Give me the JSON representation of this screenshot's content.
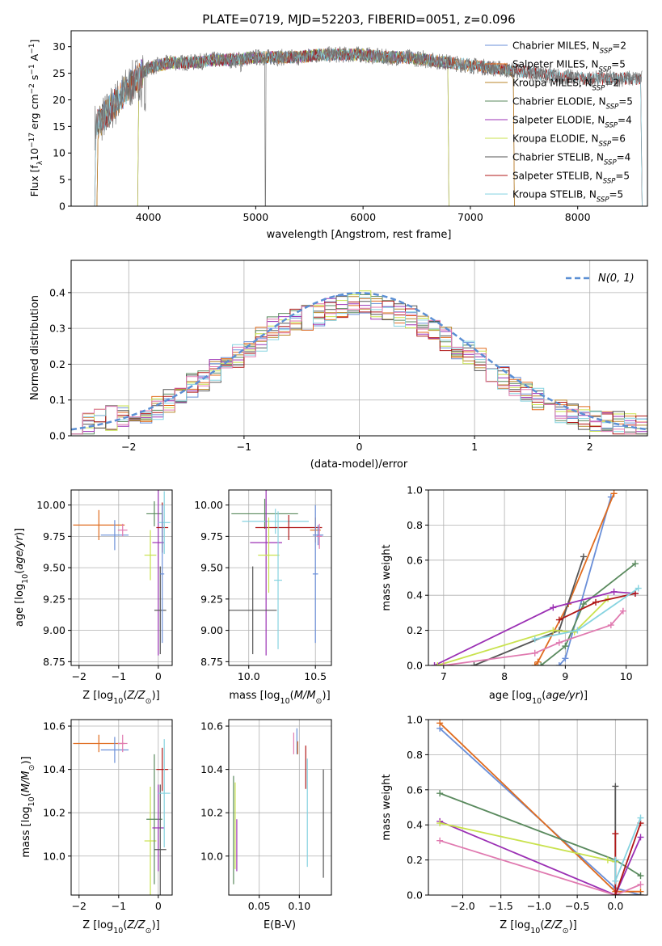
{
  "figure_title": "PLATE=0719, MJD=52203, FIBERID=0051, z=0.096",
  "colors": {
    "chabrier_miles": "#6a8fd8",
    "salpeter_miles": "#e06c1f",
    "kroupa_miles": "#b8862a",
    "chabrier_elodie": "#5a8a5e",
    "salpeter_elodie": "#9b30b4",
    "kroupa_elodie": "#c9e24e",
    "chabrier_stelib": "#555555",
    "salpeter_stelib": "#b01818",
    "kroupa_stelib": "#86d3e0",
    "pink": "#e07ab0",
    "normal_curve": "#5b8fd4"
  },
  "chart_data": [
    {
      "id": "spectrum",
      "type": "line",
      "xlabel": "wavelength [Angstrom, rest frame]",
      "ylabel": "Flux [f_λ 10^-17 erg cm^-2 s^-1 A^-1]",
      "xlim": [
        3280,
        8650
      ],
      "ylim": [
        0,
        33
      ],
      "xticks": [
        4000,
        5000,
        6000,
        7000,
        8000
      ],
      "yticks": [
        0,
        5,
        10,
        15,
        20,
        25,
        30
      ],
      "grid": false,
      "legend_position": "right",
      "legend": [
        {
          "label": "Chabrier MILES, N",
          "sub": "SSP",
          "suffix": "=2",
          "color": "#6a8fd8"
        },
        {
          "label": "Salpeter MILES, N",
          "sub": "SSP",
          "suffix": "=5",
          "color": "#e06c1f"
        },
        {
          "label": "Kroupa MILES, N",
          "sub": "SSP",
          "suffix": "=2",
          "color": "#b8862a"
        },
        {
          "label": "Chabrier ELODIE, N",
          "sub": "SSP",
          "suffix": "=5",
          "color": "#5a8a5e"
        },
        {
          "label": "Salpeter ELODIE, N",
          "sub": "SSP",
          "suffix": "=4",
          "color": "#9b30b4"
        },
        {
          "label": "Kroupa ELODIE, N",
          "sub": "SSP",
          "suffix": "=6",
          "color": "#c9e24e"
        },
        {
          "label": "Chabrier STELIB, N",
          "sub": "SSP",
          "suffix": "=4",
          "color": "#555555"
        },
        {
          "label": "Salpeter STELIB, N",
          "sub": "SSP",
          "suffix": "=5",
          "color": "#b01818"
        },
        {
          "label": "Kroupa STELIB, N",
          "sub": "SSP",
          "suffix": "=5",
          "color": "#86d3e0"
        }
      ],
      "continuum_x": [
        3500,
        3600,
        3700,
        3800,
        3900,
        4000,
        4200,
        4400,
        4600,
        4800,
        5000,
        5200,
        5400,
        5600,
        5800,
        6000,
        6200,
        6400,
        6600,
        6800,
        7000,
        7200,
        7400,
        7600,
        7800,
        8000,
        8200
      ],
      "continuum_y": [
        15,
        17,
        19.5,
        22,
        24,
        26,
        27,
        27,
        27.5,
        27.5,
        28,
        28,
        28,
        28.5,
        28.5,
        28.5,
        28,
        28,
        27.5,
        27,
        26.5,
        26,
        25.5,
        25,
        24.5,
        24,
        24
      ],
      "model_ranges": [
        {
          "series": "Chabrier MILES",
          "x": [
            3520,
            7410
          ],
          "color": "#6a8fd8"
        },
        {
          "series": "Salpeter MILES",
          "x": [
            3520,
            7410
          ],
          "color": "#e06c1f"
        },
        {
          "series": "Kroupa MILES",
          "x": [
            3520,
            7410
          ],
          "color": "#b8862a"
        },
        {
          "series": "Chabrier ELODIE",
          "x": [
            3900,
            6800
          ],
          "color": "#5a8a5e"
        },
        {
          "series": "Salpeter ELODIE",
          "x": [
            3900,
            6800
          ],
          "color": "#9b30b4"
        },
        {
          "series": "Kroupa ELODIE",
          "x": [
            3900,
            6800
          ],
          "color": "#c9e24e"
        },
        {
          "series": "Chabrier STELIB",
          "x": [
            3500,
            8600
          ],
          "color": "#555555"
        },
        {
          "series": "Salpeter STELIB",
          "x": [
            3500,
            8600
          ],
          "color": "#b01818"
        },
        {
          "series": "Kroupa STELIB",
          "x": [
            3500,
            8600
          ],
          "color": "#86d3e0"
        }
      ]
    },
    {
      "id": "residuals",
      "type": "line",
      "xlabel": "(data-model)/error",
      "ylabel": "Normed distribution",
      "xlim": [
        -2.5,
        2.5
      ],
      "ylim": [
        0,
        0.49
      ],
      "xticks": [
        -2,
        -1,
        0,
        1,
        2
      ],
      "yticks": [
        0.0,
        0.1,
        0.2,
        0.3,
        0.4
      ],
      "grid": true,
      "legend_position": "top-right",
      "legend_label": "N(0, 1)",
      "bin_width": 0.1,
      "bin_start": -2.5,
      "base_profile": [
        0.03,
        0.035,
        0.04,
        0.05,
        0.06,
        0.065,
        0.07,
        0.08,
        0.1,
        0.12,
        0.14,
        0.16,
        0.18,
        0.2,
        0.22,
        0.25,
        0.27,
        0.3,
        0.31,
        0.32,
        0.33,
        0.34,
        0.35,
        0.36,
        0.37,
        0.37,
        0.36,
        0.35,
        0.34,
        0.33,
        0.31,
        0.29,
        0.27,
        0.25,
        0.23,
        0.21,
        0.18,
        0.16,
        0.14,
        0.12,
        0.1,
        0.08,
        0.07,
        0.06,
        0.05,
        0.045,
        0.04,
        0.035,
        0.03,
        0.025
      ]
    },
    {
      "id": "age_vs_Z",
      "type": "scatter",
      "xlabel": "Z [log10(Z/Z_sun)]",
      "ylabel": "age [log10(age/yr)]",
      "xlim": [
        -2.2,
        0.35
      ],
      "ylim": [
        8.72,
        10.12
      ],
      "xticks": [
        -2,
        -1,
        0
      ],
      "yticks": [
        8.75,
        9.0,
        9.25,
        9.5,
        9.75,
        10.0
      ],
      "grid": true,
      "points": [
        {
          "x": -1.5,
          "y": 9.84,
          "xerr": 0.65,
          "yerr": 0.12,
          "color": "#e06c1f"
        },
        {
          "x": -1.1,
          "y": 9.76,
          "xerr": 0.35,
          "yerr": 0.12,
          "color": "#6a8fd8"
        },
        {
          "x": -0.9,
          "y": 9.8,
          "xerr": 0.12,
          "yerr": 0.05,
          "color": "#e07ab0"
        },
        {
          "x": -0.2,
          "y": 9.6,
          "xerr": 0.15,
          "yerr": 0.2,
          "color": "#c9e24e"
        },
        {
          "x": -0.1,
          "y": 9.93,
          "xerr": 0.2,
          "yerr": 0.1,
          "color": "#5a8a5e"
        },
        {
          "x": 0.0,
          "y": 9.7,
          "xerr": 0.15,
          "yerr": 0.9,
          "color": "#9b30b4"
        },
        {
          "x": 0.05,
          "y": 9.16,
          "xerr": 0.15,
          "yerr": 0.35,
          "color": "#555555"
        },
        {
          "x": 0.1,
          "y": 9.82,
          "xerr": 0.15,
          "yerr": 0.2,
          "color": "#b01818"
        },
        {
          "x": 0.15,
          "y": 9.86,
          "xerr": 0.15,
          "yerr": 0.25,
          "color": "#86d3e0"
        },
        {
          "x": 0.1,
          "y": 9.45,
          "xerr": 0.05,
          "yerr": 0.55,
          "color": "#6a8fd8"
        }
      ]
    },
    {
      "id": "age_vs_mass",
      "type": "scatter",
      "xlabel": "mass [log10(M/M_sun)]",
      "ylabel": "",
      "xlim": [
        9.85,
        10.62
      ],
      "ylim": [
        8.72,
        10.12
      ],
      "xticks": [
        10.0,
        10.5
      ],
      "yticks": [
        8.75,
        9.0,
        9.25,
        9.5,
        9.75,
        10.0
      ],
      "grid": true,
      "points": [
        {
          "x": 10.12,
          "y": 9.93,
          "xerr": 0.25,
          "yerr": 0.12,
          "color": "#5a8a5e"
        },
        {
          "x": 10.2,
          "y": 9.87,
          "xerr": 0.25,
          "yerr": 0.1,
          "color": "#86d3e0"
        },
        {
          "x": 10.3,
          "y": 9.82,
          "xerr": 0.25,
          "yerr": 0.1,
          "color": "#b01818"
        },
        {
          "x": 10.13,
          "y": 9.7,
          "xerr": 0.12,
          "yerr": 0.9,
          "color": "#9b30b4"
        },
        {
          "x": 10.15,
          "y": 9.6,
          "xerr": 0.08,
          "yerr": 0.3,
          "color": "#c9e24e"
        },
        {
          "x": 10.03,
          "y": 9.16,
          "xerr": 0.18,
          "yerr": 0.35,
          "color": "#555555"
        },
        {
          "x": 10.22,
          "y": 9.4,
          "xerr": 0.03,
          "yerr": 0.55,
          "color": "#86d3e0"
        },
        {
          "x": 10.5,
          "y": 9.8,
          "xerr": 0.04,
          "yerr": 0.1,
          "color": "#e06c1f"
        },
        {
          "x": 10.52,
          "y": 9.76,
          "xerr": 0.04,
          "yerr": 0.08,
          "color": "#6a8fd8"
        },
        {
          "x": 10.53,
          "y": 9.75,
          "xerr": 0.02,
          "yerr": 0.1,
          "color": "#e07ab0"
        },
        {
          "x": 10.5,
          "y": 9.45,
          "xerr": 0.02,
          "yerr": 0.55,
          "color": "#6a8fd8"
        }
      ]
    },
    {
      "id": "weight_vs_age",
      "type": "line",
      "xlabel": "age [log10(age/yr)]",
      "ylabel": "mass weight",
      "xlim": [
        6.75,
        10.35
      ],
      "ylim": [
        0,
        1.0
      ],
      "xticks": [
        7,
        8,
        9,
        10
      ],
      "yticks": [
        0.0,
        0.2,
        0.4,
        0.6,
        0.8,
        1.0
      ],
      "grid": true,
      "series": [
        {
          "color": "#6a8fd8",
          "x": [
            8.9,
            9.0,
            9.75
          ],
          "y": [
            0.0,
            0.04,
            0.96
          ]
        },
        {
          "color": "#e06c1f",
          "x": [
            8.5,
            8.55,
            9.05,
            9.8
          ],
          "y": [
            0.0,
            0.02,
            0.35,
            0.98
          ]
        },
        {
          "color": "#555555",
          "x": [
            7.5,
            8.9,
            9.3
          ],
          "y": [
            0.0,
            0.2,
            0.62
          ]
        },
        {
          "color": "#5a8a5e",
          "x": [
            8.6,
            9.0,
            9.3,
            10.15
          ],
          "y": [
            0.0,
            0.11,
            0.35,
            0.58
          ]
        },
        {
          "color": "#9b30b4",
          "x": [
            6.85,
            8.8,
            9.8,
            10.15
          ],
          "y": [
            0.0,
            0.33,
            0.42,
            0.41
          ]
        },
        {
          "color": "#c9e24e",
          "x": [
            6.9,
            8.8,
            9.15,
            9.7
          ],
          "y": [
            0.0,
            0.2,
            0.19,
            0.38
          ]
        },
        {
          "color": "#b01818",
          "x": [
            8.9,
            9.5,
            10.15
          ],
          "y": [
            0.26,
            0.36,
            0.41
          ]
        },
        {
          "color": "#86d3e0",
          "x": [
            8.5,
            9.2,
            10.2
          ],
          "y": [
            0.15,
            0.2,
            0.44
          ]
        },
        {
          "color": "#e07ab0",
          "x": [
            7.0,
            8.5,
            8.9,
            9.75,
            9.95
          ],
          "y": [
            0.0,
            0.07,
            0.13,
            0.23,
            0.31
          ]
        }
      ]
    },
    {
      "id": "mass_vs_Z",
      "type": "scatter",
      "xlabel": "Z [log10(Z/Z_sun)]",
      "ylabel": "mass [log10(M/M_sun)]",
      "xlim": [
        -2.2,
        0.35
      ],
      "ylim": [
        9.82,
        10.63
      ],
      "xticks": [
        -2,
        -1,
        0
      ],
      "yticks": [
        10.0,
        10.2,
        10.4,
        10.6
      ],
      "grid": true,
      "points": [
        {
          "x": -1.5,
          "y": 10.52,
          "xerr": 0.65,
          "yerr": 0.04,
          "color": "#e06c1f"
        },
        {
          "x": -1.1,
          "y": 10.49,
          "xerr": 0.35,
          "yerr": 0.06,
          "color": "#6a8fd8"
        },
        {
          "x": -0.9,
          "y": 10.52,
          "xerr": 0.12,
          "yerr": 0.04,
          "color": "#e07ab0"
        },
        {
          "x": -0.2,
          "y": 10.07,
          "xerr": 0.15,
          "yerr": 0.25,
          "color": "#c9e24e"
        },
        {
          "x": -0.1,
          "y": 10.17,
          "xerr": 0.2,
          "yerr": 0.3,
          "color": "#5a8a5e"
        },
        {
          "x": 0.0,
          "y": 10.13,
          "xerr": 0.15,
          "yerr": 0.2,
          "color": "#9b30b4"
        },
        {
          "x": 0.05,
          "y": 10.03,
          "xerr": 0.15,
          "yerr": 0.3,
          "color": "#555555"
        },
        {
          "x": 0.1,
          "y": 10.4,
          "xerr": 0.15,
          "yerr": 0.1,
          "color": "#b01818"
        },
        {
          "x": 0.15,
          "y": 10.29,
          "xerr": 0.15,
          "yerr": 0.25,
          "color": "#86d3e0"
        }
      ]
    },
    {
      "id": "mass_vs_EBV",
      "type": "scatter",
      "xlabel": "E(B-V)",
      "ylabel": "",
      "xlim": [
        0.012,
        0.14
      ],
      "ylim": [
        9.82,
        10.63
      ],
      "xticks": [
        0.05,
        0.1
      ],
      "yticks": [
        10.0,
        10.2,
        10.4,
        10.6
      ],
      "grid": true,
      "points": [
        {
          "x": 0.018,
          "y": 10.12,
          "xerr": 0,
          "yerr": 0.25,
          "color": "#5a8a5e"
        },
        {
          "x": 0.02,
          "y": 10.14,
          "xerr": 0,
          "yerr": 0.2,
          "color": "#c9e24e"
        },
        {
          "x": 0.022,
          "y": 10.05,
          "xerr": 0,
          "yerr": 0.12,
          "color": "#9b30b4"
        },
        {
          "x": 0.093,
          "y": 10.52,
          "xerr": 0,
          "yerr": 0.05,
          "color": "#e07ab0"
        },
        {
          "x": 0.097,
          "y": 10.53,
          "xerr": 0,
          "yerr": 0.06,
          "color": "#6a8fd8"
        },
        {
          "x": 0.098,
          "y": 10.5,
          "xerr": 0,
          "yerr": 0.03,
          "color": "#e06c1f"
        },
        {
          "x": 0.108,
          "y": 10.41,
          "xerr": 0,
          "yerr": 0.1,
          "color": "#b01818"
        },
        {
          "x": 0.11,
          "y": 10.2,
          "xerr": 0,
          "yerr": 0.25,
          "color": "#86d3e0"
        },
        {
          "x": 0.13,
          "y": 10.15,
          "xerr": 0,
          "yerr": 0.25,
          "color": "#555555"
        }
      ]
    },
    {
      "id": "weight_vs_Z",
      "type": "line",
      "xlabel": "Z [log10(Z/Z_sun)]",
      "ylabel": "mass weight",
      "xlim": [
        -2.45,
        0.42
      ],
      "ylim": [
        0,
        1.0
      ],
      "xticks": [
        -2.0,
        -1.5,
        -1.0,
        -0.5,
        0.0
      ],
      "yticks": [
        0.0,
        0.2,
        0.4,
        0.6,
        0.8,
        1.0
      ],
      "grid": true,
      "series": [
        {
          "color": "#6a8fd8",
          "x": [
            -2.3,
            0.0,
            0.33
          ],
          "y": [
            0.95,
            0.04,
            0.0
          ]
        },
        {
          "color": "#e06c1f",
          "x": [
            -2.3,
            0.0,
            0.33
          ],
          "y": [
            0.98,
            0.02,
            0.02
          ]
        },
        {
          "color": "#5a8a5e",
          "x": [
            -2.3,
            0.0,
            0.33
          ],
          "y": [
            0.58,
            0.2,
            0.11
          ]
        },
        {
          "color": "#9b30b4",
          "x": [
            -2.3,
            0.0,
            0.33
          ],
          "y": [
            0.42,
            0.0,
            0.33
          ]
        },
        {
          "color": "#c9e24e",
          "x": [
            -2.3,
            -0.1,
            0.0
          ],
          "y": [
            0.41,
            0.2,
            0.19
          ]
        },
        {
          "color": "#e07ab0",
          "x": [
            -2.3,
            0.0,
            0.33
          ],
          "y": [
            0.31,
            0.0,
            0.06
          ]
        },
        {
          "color": "#555555",
          "x": [
            0.0,
            0.0,
            0.33
          ],
          "y": [
            0.62,
            0.0,
            0.0
          ]
        },
        {
          "color": "#b01818",
          "x": [
            0.0,
            0.0,
            0.33
          ],
          "y": [
            0.35,
            0.0,
            0.41
          ]
        },
        {
          "color": "#86d3e0",
          "x": [
            0.0,
            0.0,
            0.33
          ],
          "y": [
            0.2,
            0.08,
            0.44
          ]
        }
      ]
    }
  ]
}
